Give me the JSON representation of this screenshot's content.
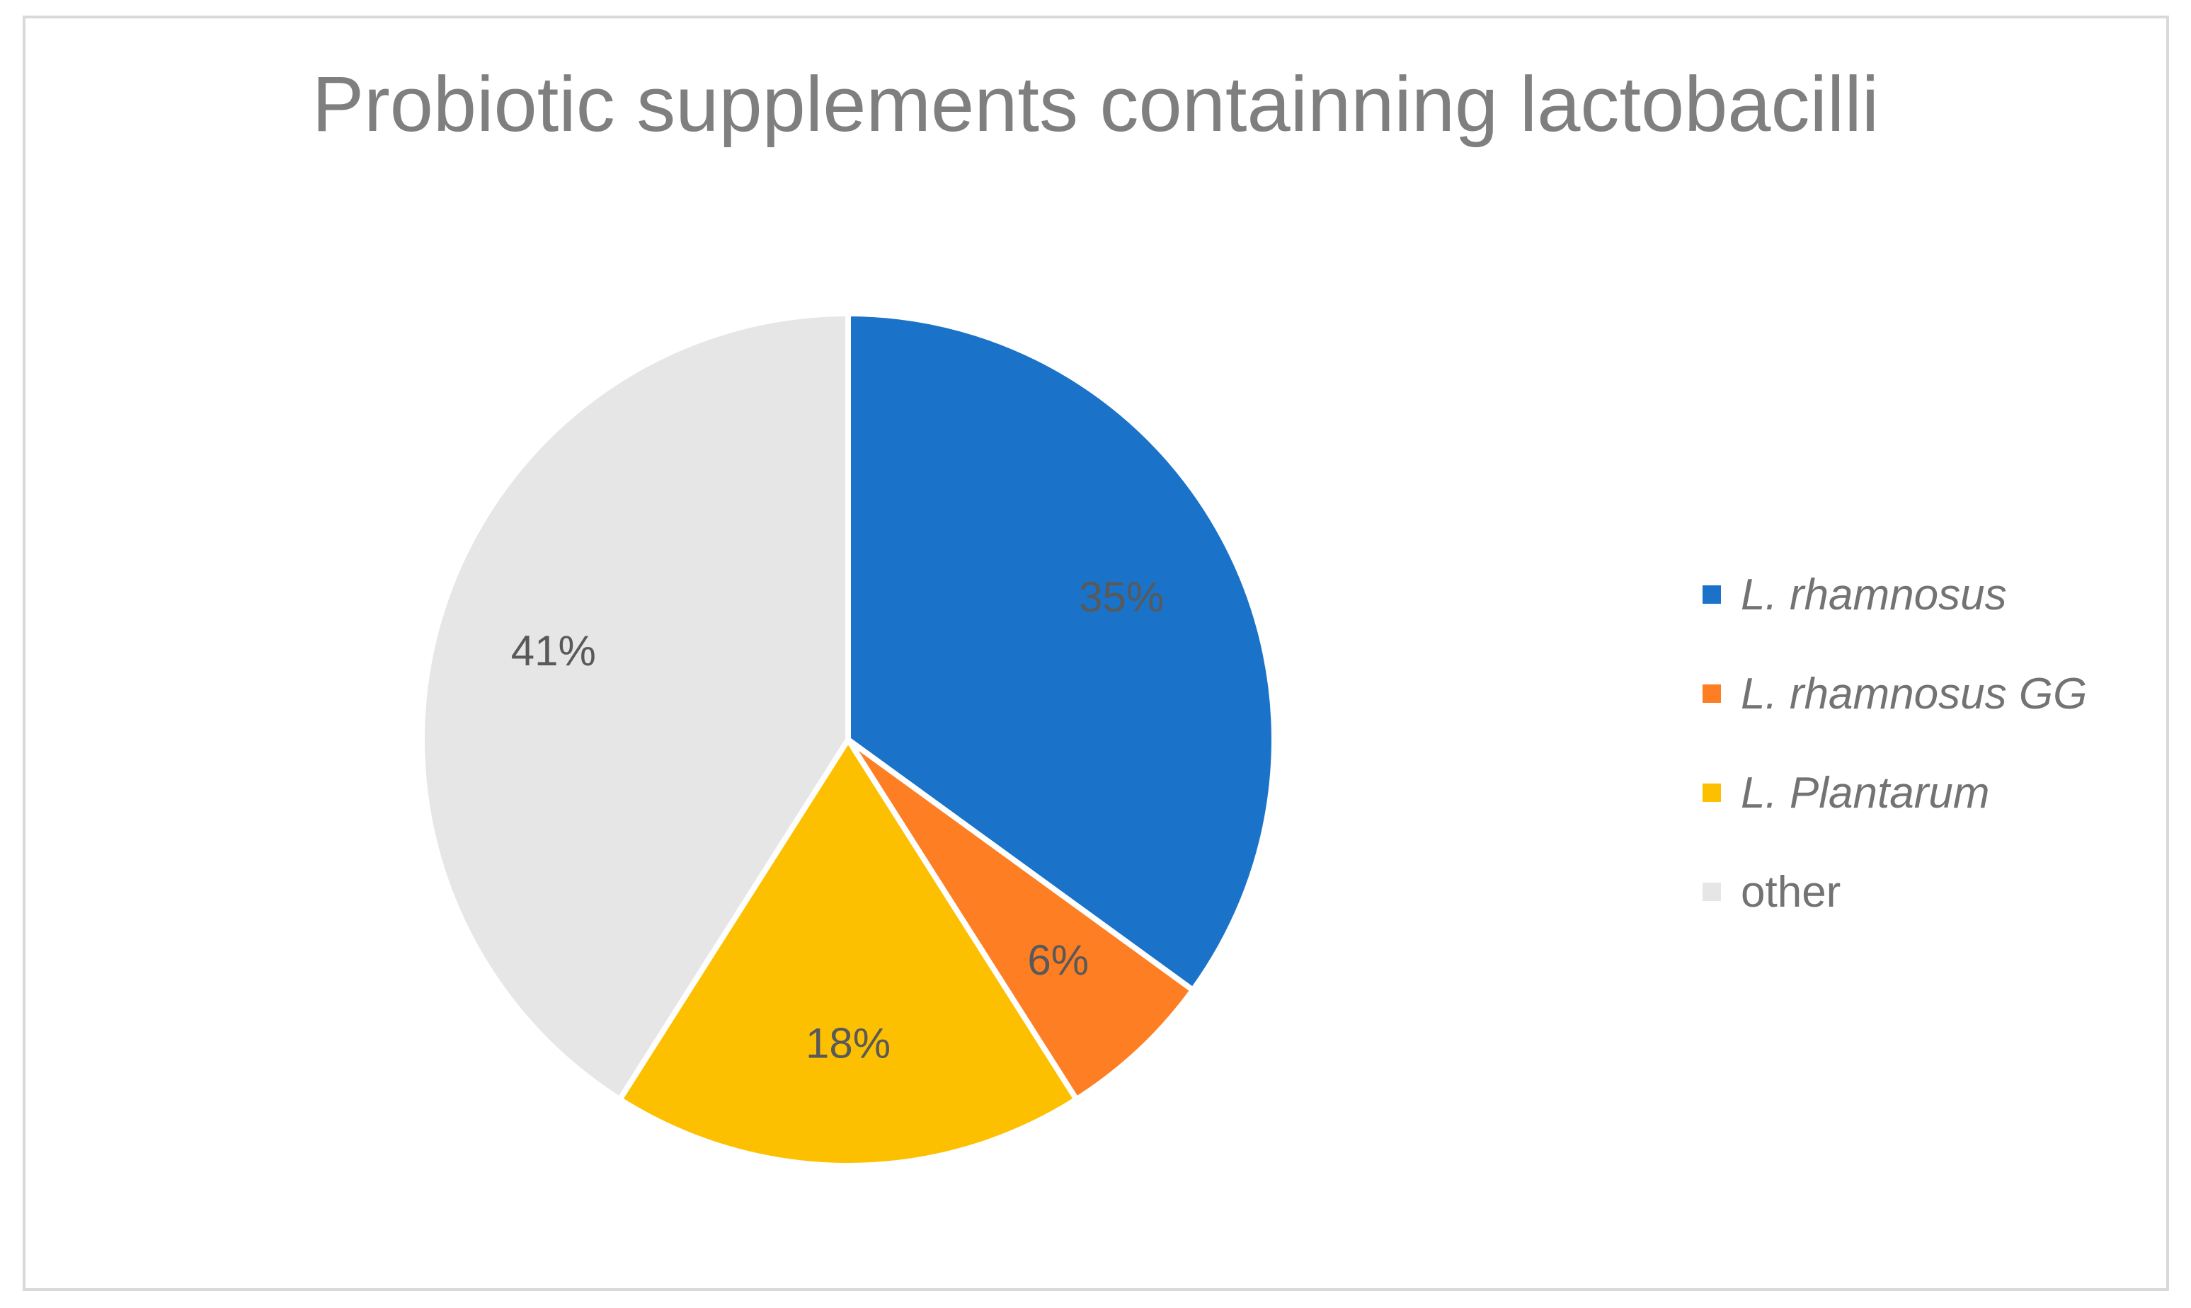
{
  "chart_data": {
    "type": "pie",
    "title": "Probiotic supplements containning lactobacilli",
    "slices": [
      {
        "name": "L. rhamnosus",
        "value": 35,
        "label": "35%",
        "color": "#1a73c8",
        "italic": true
      },
      {
        "name": "L. rhamnosus GG",
        "value": 6,
        "label": "6%",
        "color": "#fd7e23",
        "italic": true
      },
      {
        "name": "L. Plantarum",
        "value": 18,
        "label": "18%",
        "color": "#fdc000",
        "italic": true
      },
      {
        "name": "other",
        "value": 41,
        "label": "41%",
        "color": "#e6e6e6",
        "italic": false
      }
    ],
    "legend_position": "right"
  }
}
